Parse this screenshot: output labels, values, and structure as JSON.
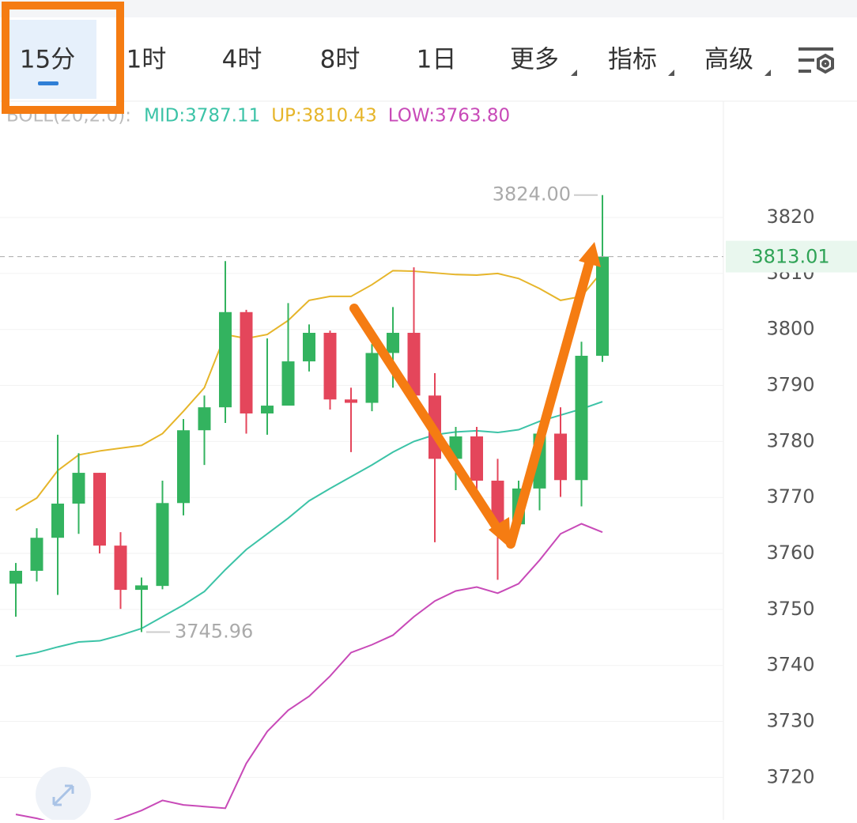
{
  "tabs": [
    "15分",
    "1时",
    "4时",
    "8时",
    "1日",
    "更多",
    "指标",
    "高级"
  ],
  "chart_data": {
    "type": "candlestick",
    "indicator_label": "BOLL(20,2.0):",
    "open": [
      3754.6,
      3756.9,
      3762.8,
      3768.9,
      3774.4,
      3761.4,
      3753.5,
      3754.2,
      3769.0,
      3782.0,
      3786.1,
      3803.1,
      3785.0,
      3786.4,
      3794.3,
      3799.4,
      3787.5,
      3786.9,
      3795.8,
      3799.4,
      3788.2,
      3776.9,
      3780.9,
      3773.0,
      3765.2,
      3771.6,
      3781.4,
      3773.1,
      3795.3
    ],
    "high": [
      3758.3,
      3764.5,
      3781.2,
      3777.9,
      3774.4,
      3763.8,
      3755.7,
      3773.0,
      3784.0,
      3788.2,
      3812.2,
      3803.5,
      3798.4,
      3804.7,
      3800.9,
      3799.8,
      3789.6,
      3797.4,
      3804.0,
      3811.1,
      3792.2,
      3782.6,
      3782.6,
      3776.9,
      3773.0,
      3781.9,
      3786.1,
      3797.8,
      3824
    ],
    "low": [
      3748.7,
      3755.0,
      3752.6,
      3763.5,
      3760.0,
      3750.1,
      3745.96,
      3753.6,
      3766.8,
      3775.8,
      3783.3,
      3781.4,
      3781.2,
      3786.4,
      3792.5,
      3785.7,
      3778.1,
      3785.4,
      3789.6,
      3788.2,
      3762.0,
      3771.3,
      3771.0,
      3755.3,
      3764.2,
      3767.7,
      3770.1,
      3768.4,
      3794.2
    ],
    "close": [
      3756.9,
      3762.8,
      3768.9,
      3774.4,
      3761.4,
      3753.5,
      3754.3,
      3769.0,
      3782.0,
      3786.1,
      3803.1,
      3785.0,
      3786.4,
      3794.3,
      3799.4,
      3787.5,
      3786.9,
      3795.8,
      3799.4,
      3788.2,
      3776.9,
      3780.9,
      3773.0,
      3765.2,
      3771.6,
      3781.4,
      3773.1,
      3795.3,
      3813.01
    ],
    "up_color": "#33b35f",
    "down_color": "#e4465b",
    "series": [
      {
        "label": "MID:3787.11",
        "color": "#3cc3a7",
        "values": [
          3741.6,
          3742.3,
          3743.3,
          3744.2,
          3744.4,
          3745.4,
          3746.6,
          3748.7,
          3750.8,
          3753.2,
          3757.1,
          3760.7,
          3763.5,
          3766.3,
          3769.4,
          3771.6,
          3773.7,
          3775.8,
          3778.1,
          3780.0,
          3781.2,
          3781.7,
          3781.9,
          3781.6,
          3782.1,
          3783.6,
          3784.7,
          3785.8,
          3787.11
        ]
      },
      {
        "label": "UP:3810.43",
        "color": "#e6b52a",
        "values": [
          3767.7,
          3769.9,
          3774.8,
          3777.6,
          3778.3,
          3778.8,
          3779.3,
          3781.4,
          3785.4,
          3789.6,
          3799.1,
          3798.4,
          3799.1,
          3801.6,
          3805.2,
          3805.9,
          3805.9,
          3808.0,
          3810.5,
          3810.4,
          3810.1,
          3809.8,
          3809.7,
          3810.0,
          3809.1,
          3807.3,
          3805.2,
          3805.9,
          3810.43
        ]
      },
      {
        "label": "LOW:3763.80",
        "color": "#c84ab8",
        "values": [
          3713.4,
          3712.7,
          3711.7,
          3711.2,
          3711.5,
          3712.7,
          3714.1,
          3715.9,
          3715.1,
          3714.8,
          3714.5,
          3722.5,
          3728.2,
          3732.0,
          3734.5,
          3738.1,
          3742.3,
          3743.7,
          3745.4,
          3748.7,
          3751.5,
          3753.3,
          3754.0,
          3752.9,
          3754.6,
          3758.8,
          3763.5,
          3765.3,
          3763.8
        ]
      }
    ],
    "max_label": "3824.00",
    "min_label": "3745.96",
    "last_price_label": "3813.01",
    "ylim": [
      3712.43,
      3840.48
    ],
    "yticks": [
      3720,
      3730,
      3740,
      3750,
      3760,
      3770,
      3780,
      3790,
      3800,
      3810,
      3820
    ],
    "grid": true
  }
}
